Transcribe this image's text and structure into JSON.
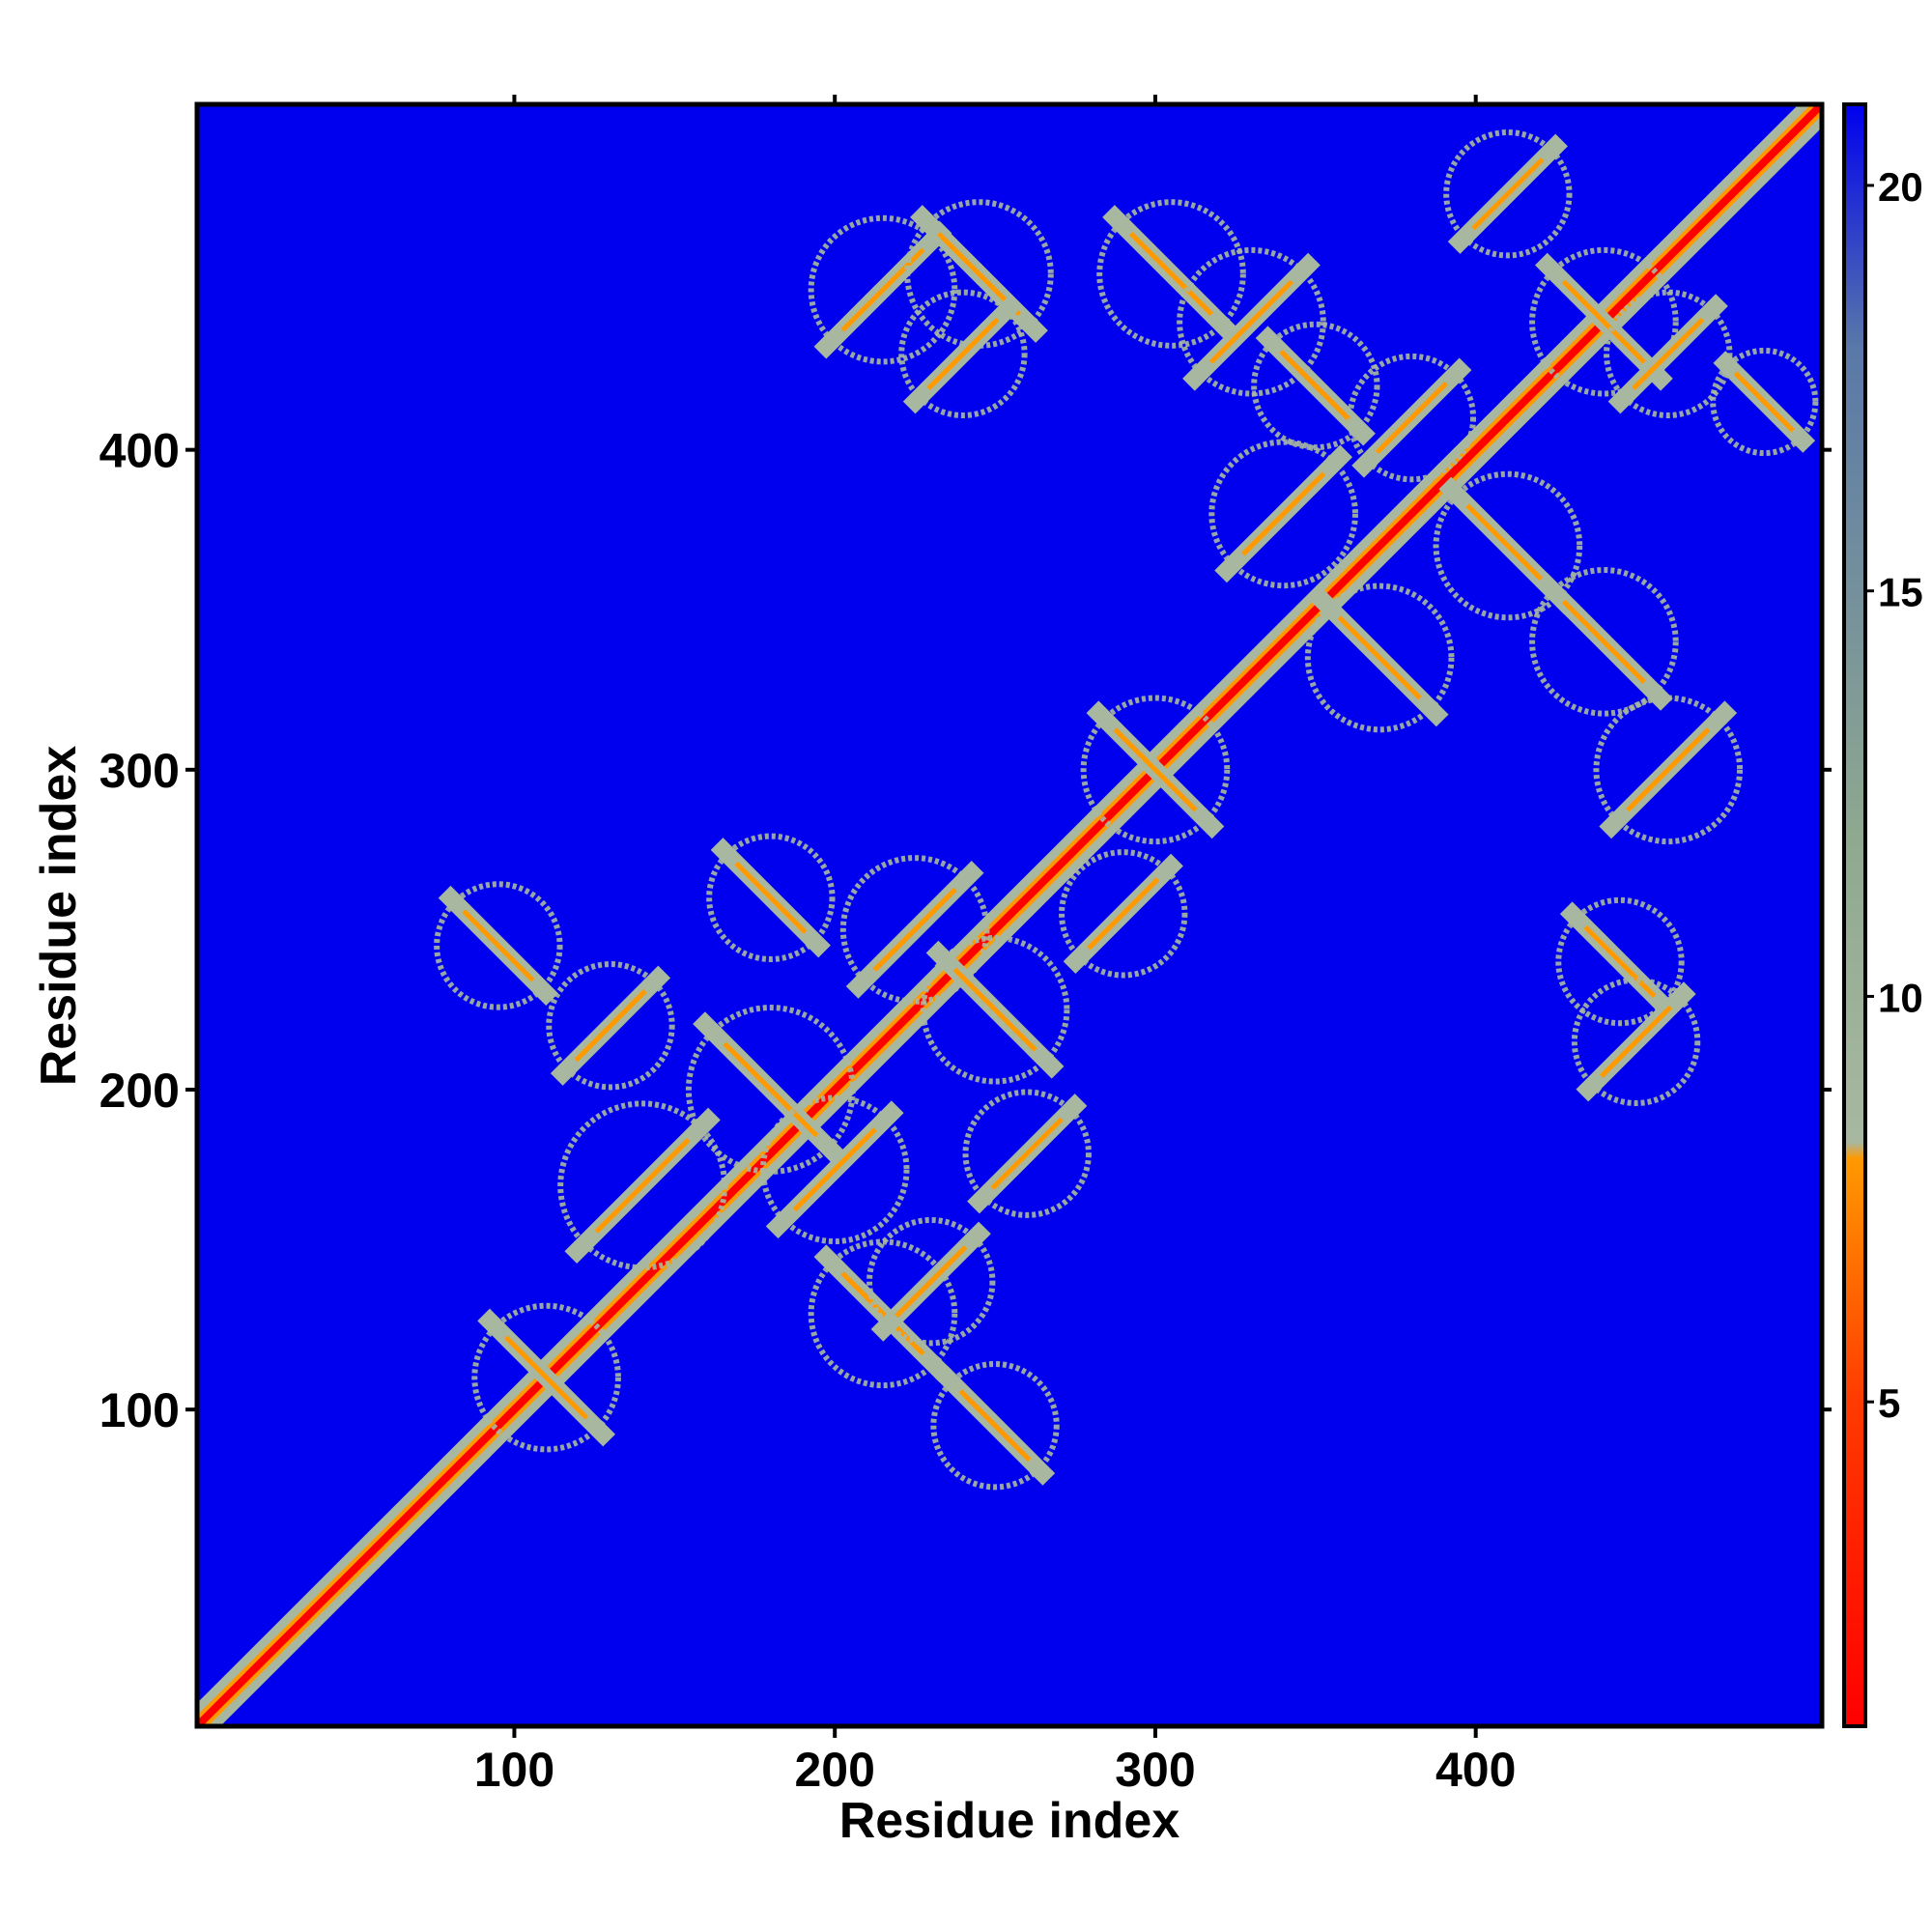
{
  "chart_data": {
    "type": "heatmap",
    "title": "",
    "xlabel": "Residue index",
    "ylabel": "Residue index",
    "xlim": [
      1,
      508
    ],
    "ylim": [
      1,
      508
    ],
    "x_ticks": [
      100,
      200,
      300,
      400
    ],
    "y_ticks": [
      100,
      200,
      300,
      400
    ],
    "x_tick_labels": [
      "100",
      "200",
      "300",
      "400"
    ],
    "y_tick_labels": [
      "100",
      "200",
      "300",
      "400"
    ],
    "colorbar": {
      "range": [
        1,
        21
      ],
      "ticks": [
        5,
        10,
        15,
        20
      ],
      "tick_labels": [
        "5",
        "10",
        "15",
        "20"
      ],
      "stops": [
        {
          "value": 1,
          "color": "#ff0000"
        },
        {
          "value": 5,
          "color": "#ff3a00"
        },
        {
          "value": 8,
          "color": "#ff9900"
        },
        {
          "value": 9,
          "color": "#a8b8a0"
        },
        {
          "value": 12,
          "color": "#8fa890"
        },
        {
          "value": 18,
          "color": "#5a78a8"
        },
        {
          "value": 21,
          "color": "#0000ee"
        }
      ]
    },
    "background_color": "#0000ee",
    "description_of_values": "pairwise residue distance map; near-diagonal values low (red), distant pairs saturated (blue)",
    "diagonal": {
      "from": 1,
      "to": 508
    },
    "contact_clusters": [
      {
        "x": 95,
        "y": 245,
        "size": 12
      },
      {
        "x": 130,
        "y": 220,
        "size": 12
      },
      {
        "x": 110,
        "y": 110,
        "size": 14
      },
      {
        "x": 140,
        "y": 170,
        "size": 16
      },
      {
        "x": 180,
        "y": 200,
        "size": 16
      },
      {
        "x": 200,
        "y": 175,
        "size": 14
      },
      {
        "x": 215,
        "y": 130,
        "size": 14
      },
      {
        "x": 230,
        "y": 140,
        "size": 12
      },
      {
        "x": 250,
        "y": 95,
        "size": 12
      },
      {
        "x": 225,
        "y": 250,
        "size": 14
      },
      {
        "x": 250,
        "y": 225,
        "size": 14
      },
      {
        "x": 260,
        "y": 180,
        "size": 12
      },
      {
        "x": 180,
        "y": 260,
        "size": 12
      },
      {
        "x": 290,
        "y": 255,
        "size": 12
      },
      {
        "x": 300,
        "y": 300,
        "size": 14
      },
      {
        "x": 215,
        "y": 450,
        "size": 14
      },
      {
        "x": 245,
        "y": 455,
        "size": 14
      },
      {
        "x": 240,
        "y": 430,
        "size": 12
      },
      {
        "x": 305,
        "y": 455,
        "size": 14
      },
      {
        "x": 330,
        "y": 440,
        "size": 14
      },
      {
        "x": 350,
        "y": 420,
        "size": 12
      },
      {
        "x": 340,
        "y": 380,
        "size": 14
      },
      {
        "x": 370,
        "y": 335,
        "size": 14
      },
      {
        "x": 380,
        "y": 410,
        "size": 12
      },
      {
        "x": 410,
        "y": 370,
        "size": 14
      },
      {
        "x": 410,
        "y": 480,
        "size": 12
      },
      {
        "x": 440,
        "y": 440,
        "size": 14
      },
      {
        "x": 460,
        "y": 430,
        "size": 12
      },
      {
        "x": 440,
        "y": 340,
        "size": 14
      },
      {
        "x": 460,
        "y": 300,
        "size": 14
      },
      {
        "x": 445,
        "y": 240,
        "size": 12
      },
      {
        "x": 450,
        "y": 215,
        "size": 12
      },
      {
        "x": 490,
        "y": 415,
        "size": 10
      }
    ]
  }
}
